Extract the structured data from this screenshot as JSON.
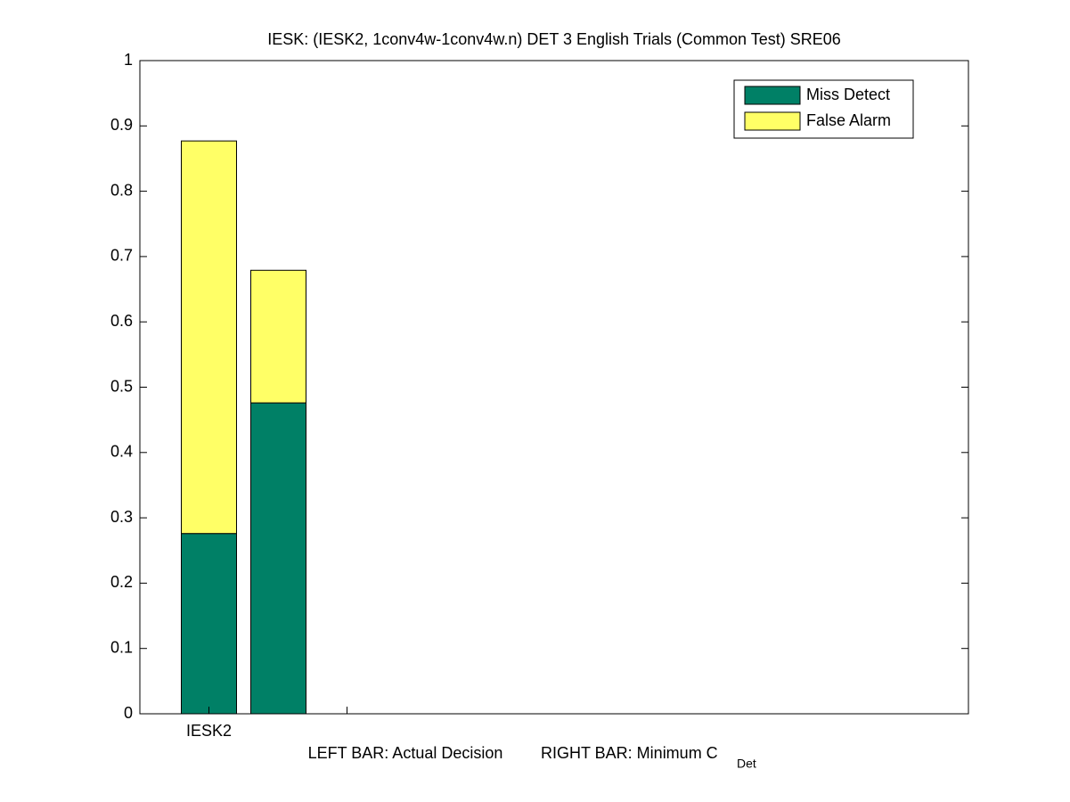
{
  "chart_data": {
    "type": "stacked_bar",
    "title": "IESK: (IESK2, 1conv4w-1conv4w.n) DET 3 English Trials (Common Test) SRE06",
    "categories": [
      "IESK2",
      null
    ],
    "series": [
      {
        "name": "Miss Detect",
        "color": "#008066",
        "values": [
          0.276,
          0.476
        ]
      },
      {
        "name": "False Alarm",
        "color": "#ffff66",
        "values": [
          0.601,
          0.203
        ]
      }
    ],
    "xlabel": [
      "LEFT BAR: Actual Decision",
      "RIGHT BAR: Minimum C",
      "Det"
    ],
    "ylim": [
      0,
      1
    ],
    "yticks": [
      0,
      0.1,
      0.2,
      0.3,
      0.4,
      0.5,
      0.6,
      0.7,
      0.8,
      0.9,
      1
    ],
    "legend": "upper right"
  }
}
